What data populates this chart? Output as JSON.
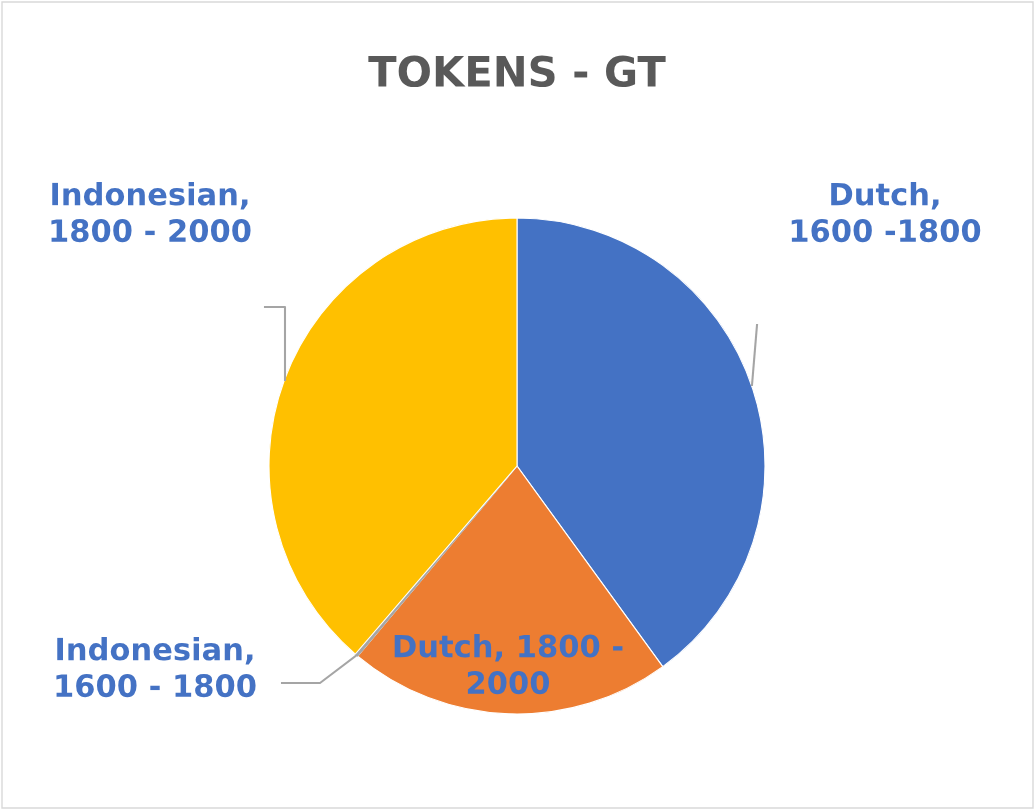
{
  "chart_data": {
    "type": "pie",
    "title": "TOKENS - GT",
    "categories": [
      "Dutch,\n1600 -1800",
      "Dutch, 1800 -\n2000",
      "Indonesian,\n1600 - 1800",
      "Indonesian,\n1800 - 2000"
    ],
    "values": [
      40,
      21.1,
      0.2,
      38.7
    ],
    "colors": [
      "#4472c4",
      "#ed7d31",
      "#a5a5a5",
      "#ffc000"
    ],
    "legend": false
  }
}
